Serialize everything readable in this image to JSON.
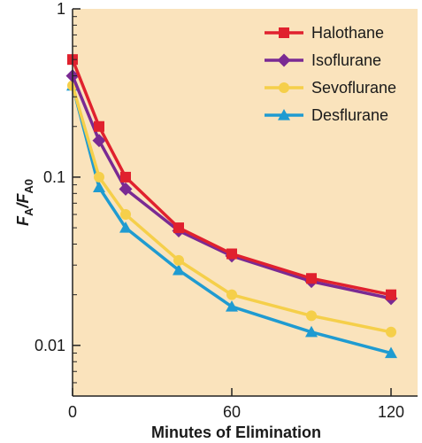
{
  "chart_data": {
    "type": "line",
    "title": "",
    "xlabel": "Minutes of Elimination",
    "ylabel_parts": [
      "F",
      "A",
      "/F",
      "A0"
    ],
    "y_scale": "log",
    "xlim": [
      0,
      130
    ],
    "ylim": [
      0.005,
      1
    ],
    "x_ticks": [
      {
        "value": 0,
        "label": "0"
      },
      {
        "value": 60,
        "label": "60"
      },
      {
        "value": 120,
        "label": "120"
      }
    ],
    "y_ticks": [
      {
        "value": 1,
        "label": "1"
      },
      {
        "value": 0.1,
        "label": "0.1"
      },
      {
        "value": 0.01,
        "label": "0.01"
      }
    ],
    "grid": false,
    "legend_position": "top-right",
    "x": [
      0,
      10,
      20,
      40,
      60,
      90,
      120
    ],
    "series": [
      {
        "name": "Halothane",
        "color": "#e0212e",
        "marker": "square",
        "values": [
          0.5,
          0.2,
          0.1,
          0.05,
          0.035,
          0.025,
          0.02
        ]
      },
      {
        "name": "Isoflurane",
        "color": "#7a2a93",
        "marker": "diamond",
        "values": [
          0.4,
          0.165,
          0.085,
          0.048,
          0.034,
          0.024,
          0.019
        ]
      },
      {
        "name": "Sevoflurane",
        "color": "#f5cf4a",
        "marker": "circle",
        "values": [
          0.35,
          0.1,
          0.06,
          0.032,
          0.02,
          0.015,
          0.012
        ]
      },
      {
        "name": "Desflurane",
        "color": "#1f9bd1",
        "marker": "triangle",
        "values": [
          0.35,
          0.087,
          0.05,
          0.028,
          0.017,
          0.012,
          0.009
        ]
      }
    ]
  },
  "style": {
    "plot_background": "#fae3bc",
    "axis_color": "#222222"
  }
}
